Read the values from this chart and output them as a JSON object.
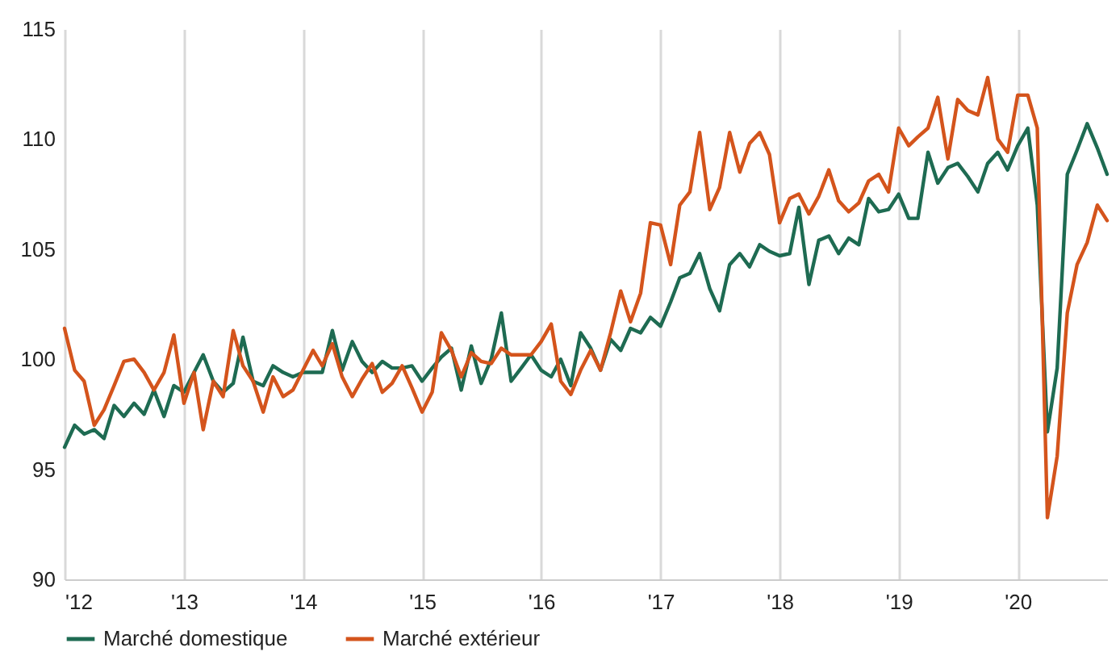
{
  "chart_data": {
    "type": "line",
    "x": [
      "2012-01",
      "2012-02",
      "2012-03",
      "2012-04",
      "2012-05",
      "2012-06",
      "2012-07",
      "2012-08",
      "2012-09",
      "2012-10",
      "2012-11",
      "2012-12",
      "2013-01",
      "2013-02",
      "2013-03",
      "2013-04",
      "2013-05",
      "2013-06",
      "2013-07",
      "2013-08",
      "2013-09",
      "2013-10",
      "2013-11",
      "2013-12",
      "2014-01",
      "2014-02",
      "2014-03",
      "2014-04",
      "2014-05",
      "2014-06",
      "2014-07",
      "2014-08",
      "2014-09",
      "2014-10",
      "2014-11",
      "2014-12",
      "2015-01",
      "2015-02",
      "2015-03",
      "2015-04",
      "2015-05",
      "2015-06",
      "2015-07",
      "2015-08",
      "2015-09",
      "2015-10",
      "2015-11",
      "2015-12",
      "2016-01",
      "2016-02",
      "2016-03",
      "2016-04",
      "2016-05",
      "2016-06",
      "2016-07",
      "2016-08",
      "2016-09",
      "2016-10",
      "2016-11",
      "2016-12",
      "2017-01",
      "2017-02",
      "2017-03",
      "2017-04",
      "2017-05",
      "2017-06",
      "2017-07",
      "2017-08",
      "2017-09",
      "2017-10",
      "2017-11",
      "2017-12",
      "2018-01",
      "2018-02",
      "2018-03",
      "2018-04",
      "2018-05",
      "2018-06",
      "2018-07",
      "2018-08",
      "2018-09",
      "2018-10",
      "2018-11",
      "2018-12",
      "2019-01",
      "2019-02",
      "2019-03",
      "2019-04",
      "2019-05",
      "2019-06",
      "2019-07",
      "2019-08",
      "2019-09",
      "2019-10",
      "2019-11",
      "2019-12",
      "2020-01",
      "2020-02",
      "2020-03",
      "2020-04",
      "2020-05",
      "2020-06",
      "2020-07",
      "2020-08",
      "2020-09",
      "2020-10"
    ],
    "series": [
      {
        "name": "Marché domestique",
        "color": "#1e6b52",
        "values": [
          96.0,
          97.0,
          96.6,
          96.8,
          96.4,
          97.9,
          97.4,
          98.0,
          97.5,
          98.6,
          97.4,
          98.8,
          98.5,
          99.4,
          100.2,
          99.0,
          98.5,
          98.9,
          101.0,
          99.0,
          98.8,
          99.7,
          99.4,
          99.2,
          99.4,
          99.4,
          99.4,
          101.3,
          99.5,
          100.8,
          99.9,
          99.4,
          99.9,
          99.6,
          99.6,
          99.7,
          99.0,
          99.6,
          100.1,
          100.5,
          98.6,
          100.6,
          98.9,
          100.0,
          102.1,
          99.0,
          99.6,
          100.2,
          99.5,
          99.2,
          100.0,
          98.8,
          101.2,
          100.5,
          99.5,
          100.9,
          100.4,
          101.4,
          101.2,
          101.9,
          101.5,
          102.6,
          103.7,
          103.9,
          104.8,
          103.2,
          102.2,
          104.3,
          104.8,
          104.2,
          105.2,
          104.9,
          104.7,
          104.8,
          106.9,
          103.4,
          105.4,
          105.6,
          104.8,
          105.5,
          105.2,
          107.3,
          106.7,
          106.8,
          107.5,
          106.4,
          106.4,
          109.4,
          108.0,
          108.7,
          108.9,
          108.3,
          107.6,
          108.9,
          109.4,
          108.6,
          109.7,
          110.5,
          107.0,
          96.7,
          99.6,
          108.4,
          109.5,
          110.7,
          109.6,
          108.4
        ]
      },
      {
        "name": "Marché extérieur",
        "color": "#d4541c",
        "values": [
          101.4,
          99.5,
          99.0,
          97.0,
          97.7,
          98.8,
          99.9,
          100.0,
          99.4,
          98.6,
          99.4,
          101.1,
          98.0,
          99.4,
          96.8,
          99.0,
          98.3,
          101.3,
          99.7,
          99.0,
          97.6,
          99.2,
          98.3,
          98.6,
          99.5,
          100.4,
          99.7,
          100.7,
          99.2,
          98.3,
          99.1,
          99.8,
          98.5,
          98.9,
          99.7,
          98.7,
          97.6,
          98.5,
          101.2,
          100.4,
          99.2,
          100.3,
          99.9,
          99.8,
          100.5,
          100.2,
          100.2,
          100.2,
          100.8,
          101.6,
          99.0,
          98.4,
          99.5,
          100.4,
          99.5,
          101.2,
          103.1,
          101.7,
          103.0,
          106.2,
          106.1,
          104.3,
          107.0,
          107.6,
          110.3,
          106.8,
          107.8,
          110.3,
          108.5,
          109.8,
          110.3,
          109.3,
          106.2,
          107.3,
          107.5,
          106.6,
          107.4,
          108.6,
          107.2,
          106.7,
          107.1,
          108.1,
          108.4,
          107.6,
          110.5,
          109.7,
          110.1,
          110.5,
          111.9,
          109.1,
          111.8,
          111.3,
          111.1,
          112.8,
          110.0,
          109.4,
          112.0,
          112.0,
          110.5,
          92.8,
          95.6,
          102.1,
          104.3,
          105.3,
          107.0,
          106.3
        ]
      }
    ],
    "xlim": [
      "2012-01",
      "2020-10"
    ],
    "xticks": [
      {
        "value": "2012-01",
        "label": "'12"
      },
      {
        "value": "2013-01",
        "label": "'13"
      },
      {
        "value": "2014-01",
        "label": "'14"
      },
      {
        "value": "2015-01",
        "label": "'15"
      },
      {
        "value": "2016-01",
        "label": "'16"
      },
      {
        "value": "2017-01",
        "label": "'17"
      },
      {
        "value": "2018-01",
        "label": "'18"
      },
      {
        "value": "2019-01",
        "label": "'19"
      },
      {
        "value": "2020-01",
        "label": "'20"
      }
    ],
    "ylim": [
      90,
      115
    ],
    "yticks": [
      90,
      95,
      100,
      105,
      110,
      115
    ],
    "grid": "x",
    "legend": "bottom",
    "marker": "none",
    "line_style": "solid"
  }
}
